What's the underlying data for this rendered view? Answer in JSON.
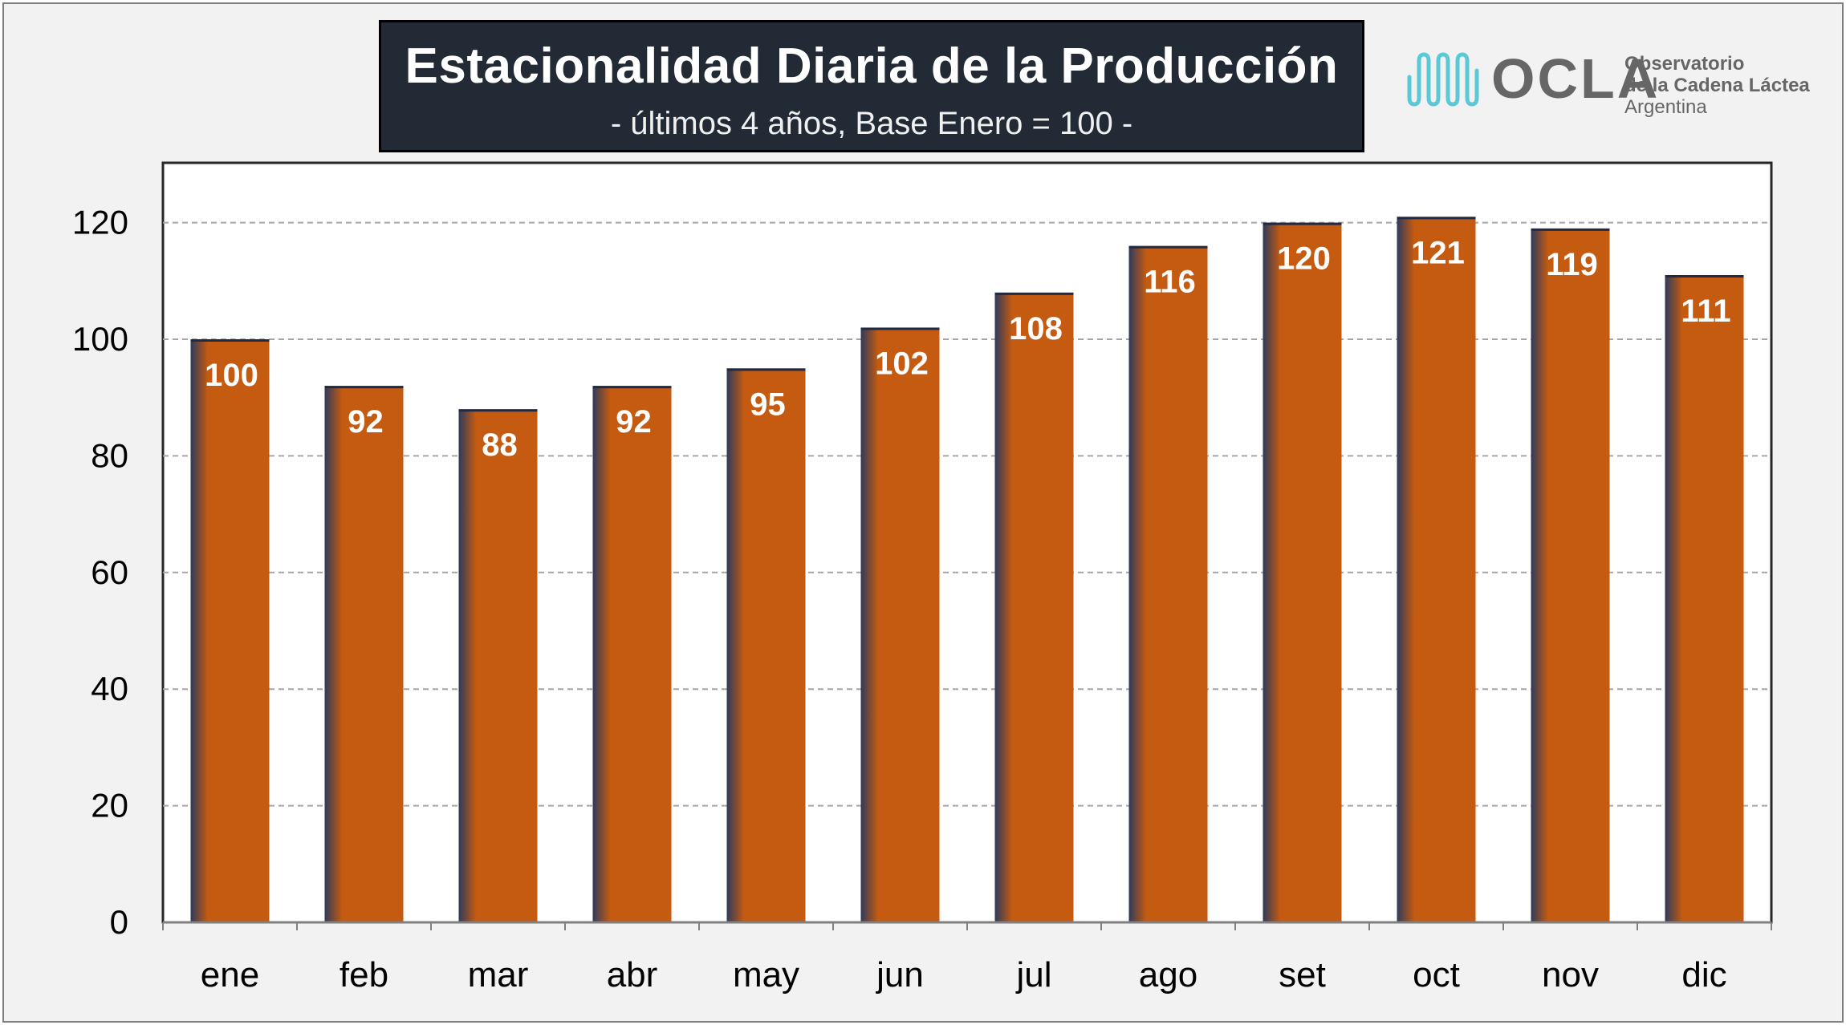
{
  "title": "Estacionalidad Diaria de la Producción",
  "subtitle": "- últimos 4 años, Base Enero = 100 -",
  "logo": {
    "wordmark": "OCLA",
    "line1": "Observatorio",
    "line2": "de la Cadena Láctea",
    "line3": "Argentina"
  },
  "colors": {
    "bar": "#c55a11",
    "bar_shadow": "#2e3a5c",
    "title_bg": "#212a35",
    "logo_wave": "#5bc8d8"
  },
  "chart_data": {
    "type": "bar",
    "categories": [
      "ene",
      "feb",
      "mar",
      "abr",
      "may",
      "jun",
      "jul",
      "ago",
      "set",
      "oct",
      "nov",
      "dic"
    ],
    "values": [
      100,
      92,
      88,
      92,
      95,
      102,
      108,
      116,
      120,
      121,
      119,
      111
    ],
    "title": "Estacionalidad Diaria de la Producción",
    "subtitle": "- últimos 4 años, Base Enero = 100 -",
    "xlabel": "",
    "ylabel": "",
    "ylim": [
      0,
      130
    ],
    "yticks": [
      0,
      20,
      40,
      60,
      80,
      100,
      120
    ],
    "grid": true,
    "legend": "none",
    "data_labels": true
  }
}
